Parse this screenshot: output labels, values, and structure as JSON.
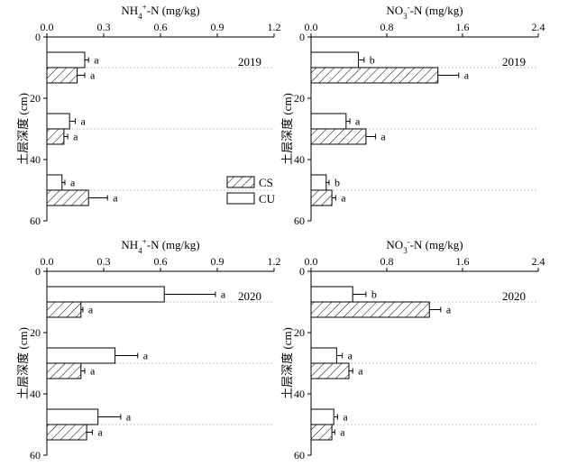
{
  "colors": {
    "axis": "#000000",
    "bar_fill": "#ffffff",
    "hatch": "#000000",
    "guide": "#b0b0b0"
  },
  "legend": {
    "entries": [
      "CS",
      "CU"
    ],
    "hatched": [
      true,
      false
    ]
  },
  "chart_data": [
    {
      "type": "bar",
      "orientation": "horizontal",
      "title": "NH4+-N (mg/kg)",
      "title_main": "NH",
      "title_sub": "4",
      "title_sup": "+",
      "title_tail": "-N (mg/kg)",
      "year": "2019",
      "ylabel": "土层深度 (cm)",
      "xlim": [
        0,
        1.2
      ],
      "xticks": [
        "0.0",
        "0.3",
        "0.6",
        "0.9",
        "1.2"
      ],
      "ylim": [
        0,
        60
      ],
      "yticks": [
        "0",
        "20",
        "40",
        "60"
      ],
      "series": [
        {
          "name": "CU",
          "hatched": false,
          "depths": [
            7.5,
            27.5,
            47.5
          ],
          "values": [
            0.2,
            0.12,
            0.08
          ],
          "errors": [
            0.02,
            0.03,
            0.015
          ],
          "labels": [
            "a",
            "a",
            "a"
          ]
        },
        {
          "name": "CS",
          "hatched": true,
          "depths": [
            12.5,
            32.5,
            52.5
          ],
          "values": [
            0.16,
            0.09,
            0.22
          ],
          "errors": [
            0.04,
            0.02,
            0.1
          ],
          "labels": [
            "a",
            "a",
            "a"
          ]
        }
      ]
    },
    {
      "type": "bar",
      "orientation": "horizontal",
      "title": "NO3--N (mg/kg)",
      "title_main": "NO",
      "title_sub": "3",
      "title_sup": "-",
      "title_tail": "-N (mg/kg)",
      "year": "2019",
      "ylabel": "土层深度 (cm)",
      "xlim": [
        0,
        2.4
      ],
      "xticks": [
        "0.0",
        "0.8",
        "1.6",
        "2.4"
      ],
      "ylim": [
        0,
        60
      ],
      "yticks": [
        "0",
        "20",
        "40",
        "60"
      ],
      "series": [
        {
          "name": "CU",
          "hatched": false,
          "depths": [
            7.5,
            27.5,
            47.5
          ],
          "values": [
            0.5,
            0.37,
            0.16
          ],
          "errors": [
            0.06,
            0.04,
            0.03
          ],
          "labels": [
            "b",
            "a",
            "b"
          ]
        },
        {
          "name": "CS",
          "hatched": true,
          "depths": [
            12.5,
            32.5,
            52.5
          ],
          "values": [
            1.34,
            0.58,
            0.22
          ],
          "errors": [
            0.22,
            0.1,
            0.04
          ],
          "labels": [
            "a",
            "a",
            "a"
          ]
        }
      ]
    },
    {
      "type": "bar",
      "orientation": "horizontal",
      "title": "NH4+-N (mg/kg)",
      "title_main": "NH",
      "title_sub": "4",
      "title_sup": "+",
      "title_tail": "-N (mg/kg)",
      "year": "2020",
      "ylabel": "土层深度 (cm)",
      "xlim": [
        0,
        1.2
      ],
      "xticks": [
        "0.0",
        "0.3",
        "0.6",
        "0.9",
        "1.2"
      ],
      "ylim": [
        0,
        60
      ],
      "yticks": [
        "0",
        "20",
        "40",
        "60"
      ],
      "series": [
        {
          "name": "CU",
          "hatched": false,
          "depths": [
            7.5,
            27.5,
            47.5
          ],
          "values": [
            0.62,
            0.36,
            0.27
          ],
          "errors": [
            0.27,
            0.12,
            0.12
          ],
          "labels": [
            "a",
            "a",
            "a"
          ]
        },
        {
          "name": "CS",
          "hatched": true,
          "depths": [
            12.5,
            32.5,
            52.5
          ],
          "values": [
            0.18,
            0.18,
            0.21
          ],
          "errors": [
            0.01,
            0.02,
            0.03
          ],
          "labels": [
            "a",
            "a",
            "a"
          ]
        }
      ]
    },
    {
      "type": "bar",
      "orientation": "horizontal",
      "title": "NO3--N (mg/kg)",
      "title_main": "NO",
      "title_sub": "3",
      "title_sup": "-",
      "title_tail": "-N (mg/kg)",
      "year": "2020",
      "ylabel": "土层深度 (cm)",
      "xlim": [
        0,
        2.4
      ],
      "xticks": [
        "0.0",
        "0.8",
        "1.6",
        "2.4"
      ],
      "ylim": [
        0,
        60
      ],
      "yticks": [
        "0",
        "20",
        "40",
        "60"
      ],
      "series": [
        {
          "name": "CU",
          "hatched": false,
          "depths": [
            7.5,
            27.5,
            47.5
          ],
          "values": [
            0.44,
            0.27,
            0.24
          ],
          "errors": [
            0.14,
            0.06,
            0.04
          ],
          "labels": [
            "b",
            "a",
            "a"
          ]
        },
        {
          "name": "CS",
          "hatched": true,
          "depths": [
            12.5,
            32.5,
            52.5
          ],
          "values": [
            1.25,
            0.4,
            0.22
          ],
          "errors": [
            0.12,
            0.04,
            0.03
          ],
          "labels": [
            "a",
            "a",
            "a"
          ]
        }
      ]
    }
  ]
}
